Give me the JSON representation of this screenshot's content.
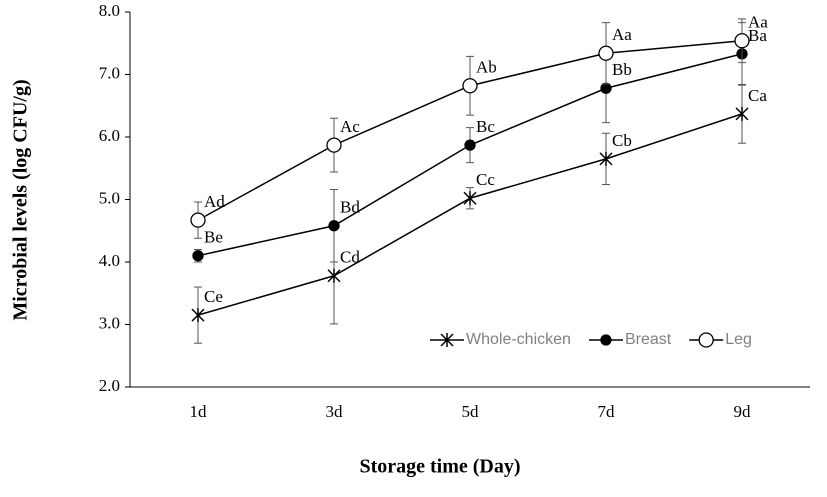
{
  "chart_data": {
    "type": "line",
    "xlabel": "Storage time (Day)",
    "ylabel": "Microbial levels  (log CFU/g)",
    "categories": [
      "1d",
      "3d",
      "5d",
      "7d",
      "9d"
    ],
    "ylim": [
      2,
      8
    ],
    "yticks": [
      {
        "value": 2,
        "label": "2.0"
      },
      {
        "value": 3,
        "label": "3.0"
      },
      {
        "value": 4,
        "label": "4.0"
      },
      {
        "value": 5,
        "label": "5.0"
      },
      {
        "value": 6,
        "label": "6.0"
      },
      {
        "value": 7,
        "label": "7.0"
      },
      {
        "value": 8,
        "label": "8.0"
      }
    ],
    "legend": "lower right",
    "series": [
      {
        "name": "Whole-chicken",
        "color": "#000000",
        "marker": "x",
        "values": [
          3.15,
          3.78,
          5.02,
          5.65,
          6.37
        ],
        "errors": [
          0.45,
          0.77,
          0.17,
          0.41,
          0.47
        ],
        "labels": [
          "Ce",
          "Cd",
          "Cc",
          "Cb",
          "Ca"
        ]
      },
      {
        "name": "Breast",
        "color": "#000000",
        "marker": "filled-circle",
        "values": [
          4.1,
          4.58,
          5.87,
          6.78,
          7.33
        ],
        "errors": [
          0.1,
          0.58,
          0.28,
          0.55,
          0.5
        ],
        "labels": [
          "Be",
          "Bd",
          "Bc",
          "Bb",
          "Ba"
        ]
      },
      {
        "name": "Leg",
        "color": "#000000",
        "marker": "open-circle",
        "values": [
          4.67,
          5.87,
          6.82,
          7.34,
          7.54
        ],
        "errors": [
          0.29,
          0.43,
          0.47,
          0.49,
          0.35
        ],
        "labels": [
          "Ad",
          "Ac",
          "Ab",
          "Aa",
          "Aa"
        ]
      }
    ]
  }
}
